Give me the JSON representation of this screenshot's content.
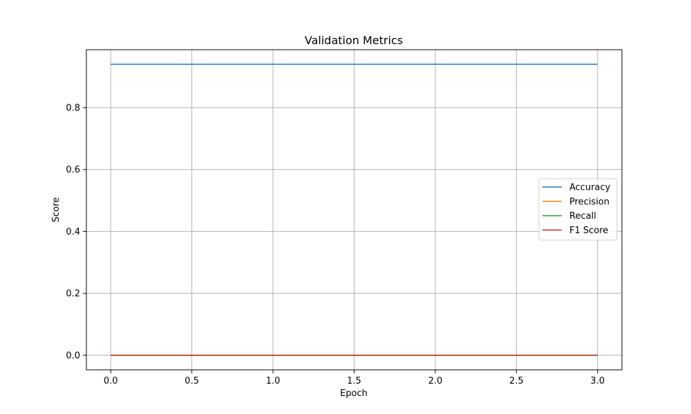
{
  "chart_data": {
    "type": "line",
    "title": "Validation Metrics",
    "xlabel": "Epoch",
    "ylabel": "Score",
    "x": [
      0,
      1,
      2,
      3
    ],
    "xlim": [
      -0.15,
      3.15
    ],
    "ylim": [
      -0.047,
      0.987
    ],
    "xticks": [
      0.0,
      0.5,
      1.0,
      1.5,
      2.0,
      2.5,
      3.0
    ],
    "xtick_labels": [
      "0.0",
      "0.5",
      "1.0",
      "1.5",
      "2.0",
      "2.5",
      "3.0"
    ],
    "yticks": [
      0.0,
      0.2,
      0.4,
      0.6,
      0.8
    ],
    "ytick_labels": [
      "0.0",
      "0.2",
      "0.4",
      "0.6",
      "0.8"
    ],
    "grid": true,
    "legend_position": "center-right",
    "series": [
      {
        "name": "Accuracy",
        "color": "#1f77b4",
        "values": [
          0.94,
          0.94,
          0.94,
          0.94
        ]
      },
      {
        "name": "Precision",
        "color": "#ff7f0e",
        "values": [
          0.0,
          0.0,
          0.0,
          0.0
        ]
      },
      {
        "name": "Recall",
        "color": "#2ca02c",
        "values": [
          0.0,
          0.0,
          0.0,
          0.0
        ]
      },
      {
        "name": "F1 Score",
        "color": "#d62728",
        "values": [
          0.0,
          0.0,
          0.0,
          0.0
        ]
      }
    ]
  }
}
